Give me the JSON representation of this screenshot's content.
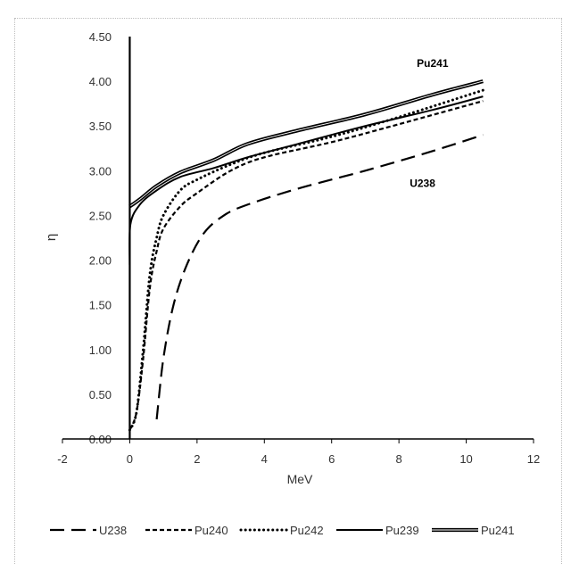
{
  "chart_data": {
    "type": "line",
    "title": "",
    "xlabel": "MeV",
    "ylabel": "η",
    "xlim": [
      -2,
      12
    ],
    "ylim": [
      0,
      4.5
    ],
    "x_ticks": [
      -2,
      0,
      2,
      4,
      6,
      8,
      10,
      12
    ],
    "y_ticks": [
      "0.00",
      "0.50",
      "1.00",
      "1.50",
      "2.00",
      "2.50",
      "3.00",
      "3.50",
      "4.00",
      "4.50"
    ],
    "grid": false,
    "legend": "bottom",
    "annotations": [
      {
        "text": "Pu241",
        "x": 9.0,
        "y": 4.16
      },
      {
        "text": "U238",
        "x": 8.7,
        "y": 2.82
      }
    ],
    "series": [
      {
        "name": "U238",
        "style": "long-dash",
        "color": "#000000",
        "points": [
          [
            0.8,
            0.22
          ],
          [
            1.0,
            0.9
          ],
          [
            1.3,
            1.5
          ],
          [
            1.7,
            1.95
          ],
          [
            2.2,
            2.3
          ],
          [
            2.8,
            2.5
          ],
          [
            3.5,
            2.62
          ],
          [
            5.0,
            2.8
          ],
          [
            7.0,
            3.0
          ],
          [
            9.0,
            3.22
          ],
          [
            10.5,
            3.4
          ]
        ]
      },
      {
        "name": "Pu240",
        "style": "short-dash",
        "color": "#000000",
        "points": [
          [
            0.0,
            0.1
          ],
          [
            0.2,
            0.3
          ],
          [
            0.4,
            0.9
          ],
          [
            0.6,
            1.7
          ],
          [
            0.8,
            2.1
          ],
          [
            1.0,
            2.35
          ],
          [
            1.5,
            2.6
          ],
          [
            2.0,
            2.75
          ],
          [
            3.0,
            3.0
          ],
          [
            4.0,
            3.15
          ],
          [
            6.0,
            3.32
          ],
          [
            8.0,
            3.52
          ],
          [
            10.5,
            3.78
          ]
        ]
      },
      {
        "name": "Pu242",
        "style": "dotted",
        "color": "#000000",
        "points": [
          [
            0.0,
            0.1
          ],
          [
            0.2,
            0.3
          ],
          [
            0.4,
            1.0
          ],
          [
            0.6,
            1.85
          ],
          [
            0.8,
            2.25
          ],
          [
            1.0,
            2.5
          ],
          [
            1.5,
            2.78
          ],
          [
            2.0,
            2.9
          ],
          [
            3.0,
            3.07
          ],
          [
            4.0,
            3.2
          ],
          [
            6.0,
            3.38
          ],
          [
            8.0,
            3.6
          ],
          [
            10.5,
            3.9
          ]
        ]
      },
      {
        "name": "Pu239",
        "style": "solid",
        "color": "#000000",
        "points": [
          [
            0.0,
            1.95
          ],
          [
            0.02,
            2.4
          ],
          [
            0.3,
            2.62
          ],
          [
            0.8,
            2.78
          ],
          [
            1.5,
            2.93
          ],
          [
            2.5,
            3.03
          ],
          [
            3.5,
            3.15
          ],
          [
            5.0,
            3.3
          ],
          [
            7.0,
            3.5
          ],
          [
            9.0,
            3.68
          ],
          [
            10.5,
            3.83
          ]
        ]
      },
      {
        "name": "Pu241",
        "style": "double",
        "color": "#000000",
        "points": [
          [
            0.0,
            2.6
          ],
          [
            0.3,
            2.68
          ],
          [
            0.8,
            2.83
          ],
          [
            1.5,
            2.98
          ],
          [
            2.5,
            3.12
          ],
          [
            3.5,
            3.3
          ],
          [
            5.0,
            3.45
          ],
          [
            7.0,
            3.63
          ],
          [
            9.0,
            3.85
          ],
          [
            10.5,
            4.0
          ]
        ]
      }
    ]
  }
}
